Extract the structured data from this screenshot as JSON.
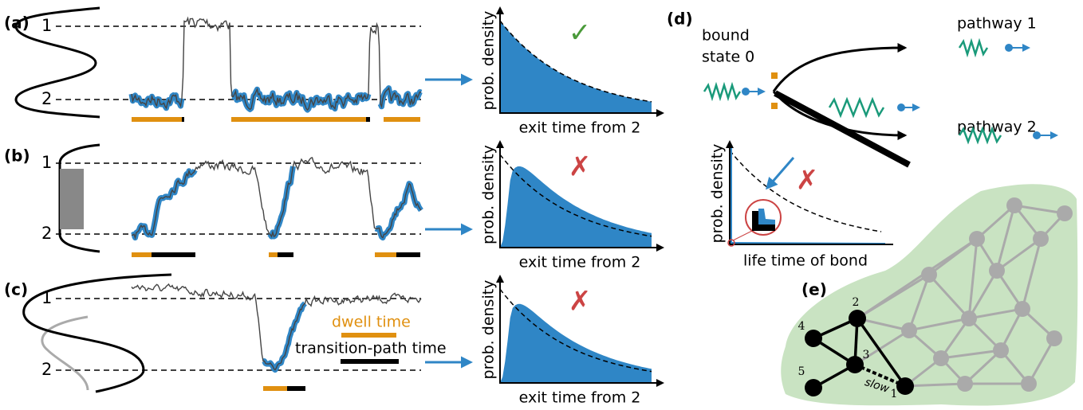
{
  "panel_a": {
    "label": "(a)",
    "state_1": "1",
    "state_2": "2",
    "plot": {
      "y_label": "prob. density",
      "x_label": "exit time from 2",
      "verdict": "✓"
    }
  },
  "panel_b": {
    "label": "(b)",
    "state_1": "1",
    "state_2": "2",
    "plot": {
      "y_label": "prob. density",
      "x_label": "exit time from 2",
      "verdict": "✗"
    }
  },
  "panel_c": {
    "label": "(c)",
    "state_1": "1",
    "state_2": "2",
    "plot": {
      "y_label": "prob. density",
      "x_label": "exit time from 2",
      "verdict": "✗"
    },
    "legend": {
      "dwell": "dwell time",
      "transition_path": "transition-path time"
    }
  },
  "panel_d": {
    "label": "(d)",
    "bound_state": [
      "bound",
      "state 0"
    ],
    "pathway_1": "pathway 1",
    "pathway_2": "pathway 2",
    "plot": {
      "y_label": "prob. density",
      "x_label": "life time of bond",
      "verdict": "✗"
    }
  },
  "panel_e": {
    "label": "(e)",
    "nodes": [
      "1",
      "2",
      "3",
      "4",
      "5"
    ],
    "edge_label": "slow"
  }
}
